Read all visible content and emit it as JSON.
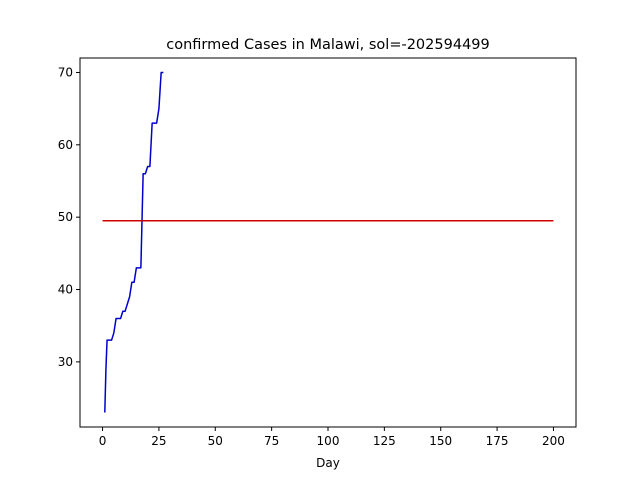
{
  "chart_data": {
    "type": "line",
    "title": "confirmed Cases in Malawi, sol=-202594499",
    "xlabel": "Day",
    "ylabel": "",
    "xlim": [
      -10,
      210
    ],
    "ylim": [
      21,
      72
    ],
    "xticks": [
      0,
      25,
      50,
      75,
      100,
      125,
      150,
      175,
      200
    ],
    "yticks": [
      30,
      40,
      50,
      60,
      70
    ],
    "grid": false,
    "series": [
      {
        "color": "#0000cc",
        "x": [
          1,
          1.5,
          2,
          3,
          4,
          5,
          6,
          7,
          8,
          9,
          10,
          11,
          12,
          13,
          14,
          15,
          16,
          17,
          18,
          19,
          20,
          21,
          22,
          23,
          24,
          25,
          26,
          27
        ],
        "y": [
          23,
          29,
          33,
          33,
          33,
          34,
          36,
          36,
          36,
          37,
          37,
          38,
          39,
          41,
          41,
          43,
          43,
          43,
          56,
          56,
          57,
          57,
          63,
          63,
          63,
          65,
          70,
          70
        ]
      },
      {
        "color": "#cc0000",
        "x": [
          0,
          200
        ],
        "y": [
          49.5,
          49.5
        ]
      }
    ]
  }
}
